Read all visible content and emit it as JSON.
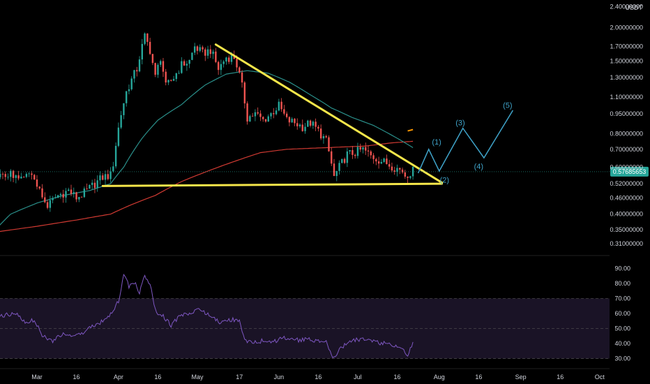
{
  "chart_data": {
    "type": "candlestick",
    "title": "",
    "price_axis": {
      "currency": "USDT",
      "scale": "log",
      "ticks": [
        "2.40000000",
        "2.00000000",
        "1.70000000",
        "1.50000000",
        "1.30000000",
        "1.10000000",
        "0.95000000",
        "0.80000000",
        "0.70000000",
        "0.60000000",
        "0.52000000",
        "0.46000000",
        "0.40000000",
        "0.35000000",
        "0.31000000"
      ],
      "tick_values": [
        2.4,
        2.0,
        1.7,
        1.5,
        1.3,
        1.1,
        0.95,
        0.8,
        0.7,
        0.6,
        0.52,
        0.46,
        0.4,
        0.35,
        0.31
      ],
      "last_price": "0.57685653",
      "range": [
        0.29,
        2.45
      ]
    },
    "time_axis": {
      "labels": [
        "Mar",
        "16",
        "Apr",
        "16",
        "May",
        "17",
        "Jun",
        "16",
        "Jul",
        "16",
        "Aug",
        "16",
        "Sep",
        "16",
        "Oct"
      ],
      "day_index": [
        0,
        15,
        31,
        46,
        61,
        77,
        92,
        107,
        122,
        137,
        153,
        168,
        184,
        199,
        214
      ]
    },
    "price_anchors": [
      {
        "day": -15,
        "close": 0.55
      },
      {
        "day": -10,
        "close": 0.57
      },
      {
        "day": -7,
        "close": 0.53
      },
      {
        "day": -3,
        "close": 0.56
      },
      {
        "day": -1,
        "close": 0.55
      },
      {
        "day": 2,
        "close": 0.46
      },
      {
        "day": 4,
        "close": 0.43
      },
      {
        "day": 8,
        "close": 0.47
      },
      {
        "day": 12,
        "close": 0.49
      },
      {
        "day": 15,
        "close": 0.46
      },
      {
        "day": 18,
        "close": 0.48
      },
      {
        "day": 22,
        "close": 0.52
      },
      {
        "day": 25,
        "close": 0.55
      },
      {
        "day": 28,
        "close": 0.56
      },
      {
        "day": 29,
        "close": 0.62
      },
      {
        "day": 32,
        "close": 0.95
      },
      {
        "day": 34,
        "close": 1.15
      },
      {
        "day": 38,
        "close": 1.4
      },
      {
        "day": 41,
        "close": 1.85
      },
      {
        "day": 43,
        "close": 1.65
      },
      {
        "day": 45,
        "close": 1.3
      },
      {
        "day": 47,
        "close": 1.55
      },
      {
        "day": 49,
        "close": 1.2
      },
      {
        "day": 52,
        "close": 1.3
      },
      {
        "day": 55,
        "close": 1.45
      },
      {
        "day": 58,
        "close": 1.5
      },
      {
        "day": 60,
        "close": 1.7
      },
      {
        "day": 63,
        "close": 1.6
      },
      {
        "day": 66,
        "close": 1.65
      },
      {
        "day": 69,
        "close": 1.4
      },
      {
        "day": 72,
        "close": 1.55
      },
      {
        "day": 75,
        "close": 1.55
      },
      {
        "day": 76,
        "close": 1.45
      },
      {
        "day": 78,
        "close": 1.2
      },
      {
        "day": 80,
        "close": 0.92
      },
      {
        "day": 83,
        "close": 0.95
      },
      {
        "day": 86,
        "close": 0.9
      },
      {
        "day": 89,
        "close": 0.95
      },
      {
        "day": 92,
        "close": 1.02
      },
      {
        "day": 95,
        "close": 0.9
      },
      {
        "day": 98,
        "close": 0.88
      },
      {
        "day": 101,
        "close": 0.85
      },
      {
        "day": 104,
        "close": 0.88
      },
      {
        "day": 107,
        "close": 0.82
      },
      {
        "day": 110,
        "close": 0.75
      },
      {
        "day": 113,
        "close": 0.55
      },
      {
        "day": 115,
        "close": 0.6
      },
      {
        "day": 118,
        "close": 0.67
      },
      {
        "day": 121,
        "close": 0.68
      },
      {
        "day": 124,
        "close": 0.7
      },
      {
        "day": 127,
        "close": 0.66
      },
      {
        "day": 130,
        "close": 0.64
      },
      {
        "day": 133,
        "close": 0.62
      },
      {
        "day": 136,
        "close": 0.6
      },
      {
        "day": 139,
        "close": 0.58
      },
      {
        "day": 140,
        "close": 0.56
      },
      {
        "day": 143,
        "close": 0.58
      }
    ],
    "ma_fast_anchors": [
      {
        "day": -18,
        "value": 0.33
      },
      {
        "day": -10,
        "value": 0.4
      },
      {
        "day": 0,
        "value": 0.44
      },
      {
        "day": 10,
        "value": 0.47
      },
      {
        "day": 20,
        "value": 0.49
      },
      {
        "day": 28,
        "value": 0.52
      },
      {
        "day": 33,
        "value": 0.6
      },
      {
        "day": 40,
        "value": 0.77
      },
      {
        "day": 46,
        "value": 0.9
      },
      {
        "day": 55,
        "value": 1.03
      },
      {
        "day": 64,
        "value": 1.22
      },
      {
        "day": 72,
        "value": 1.34
      },
      {
        "day": 80,
        "value": 1.38
      },
      {
        "day": 88,
        "value": 1.35
      },
      {
        "day": 96,
        "value": 1.25
      },
      {
        "day": 104,
        "value": 1.12
      },
      {
        "day": 112,
        "value": 1.0
      },
      {
        "day": 120,
        "value": 0.92
      },
      {
        "day": 128,
        "value": 0.86
      },
      {
        "day": 136,
        "value": 0.78
      },
      {
        "day": 143,
        "value": 0.71
      }
    ],
    "ma_slow_anchors": [
      {
        "day": -18,
        "value": 0.34
      },
      {
        "day": 0,
        "value": 0.36
      },
      {
        "day": 15,
        "value": 0.38
      },
      {
        "day": 28,
        "value": 0.4
      },
      {
        "day": 35,
        "value": 0.43
      },
      {
        "day": 45,
        "value": 0.47
      },
      {
        "day": 55,
        "value": 0.53
      },
      {
        "day": 65,
        "value": 0.58
      },
      {
        "day": 75,
        "value": 0.63
      },
      {
        "day": 85,
        "value": 0.68
      },
      {
        "day": 95,
        "value": 0.7
      },
      {
        "day": 110,
        "value": 0.71
      },
      {
        "day": 125,
        "value": 0.72
      },
      {
        "day": 135,
        "value": 0.74
      },
      {
        "day": 143,
        "value": 0.75
      }
    ],
    "trendlines": [
      {
        "name": "descending-resistance",
        "from": {
          "day": 68,
          "price": 1.73
        },
        "to": {
          "day": 154,
          "price": 0.525
        }
      },
      {
        "name": "horizontal-support",
        "from": {
          "day": 25,
          "price": 0.51
        },
        "to": {
          "day": 154,
          "price": 0.52
        }
      }
    ],
    "forecast_path": [
      {
        "day": 145,
        "price": 0.57
      },
      {
        "day": 149,
        "price": 0.7
      },
      {
        "day": 153,
        "price": 0.58
      },
      {
        "day": 162,
        "price": 0.84
      },
      {
        "day": 170,
        "price": 0.65
      },
      {
        "day": 181,
        "price": 0.98
      }
    ],
    "wave_labels": [
      {
        "text": "(1)",
        "day": 152,
        "price": 0.73
      },
      {
        "text": "(2)",
        "day": 155,
        "price": 0.525
      },
      {
        "text": "(3)",
        "day": 161,
        "price": 0.86
      },
      {
        "text": "(4)",
        "day": 168,
        "price": 0.59
      },
      {
        "text": "(5)",
        "day": 179,
        "price": 1.0
      }
    ],
    "small_marker": {
      "from": {
        "day": 141,
        "price": 0.82
      },
      "to": {
        "day": 143,
        "price": 0.83
      }
    },
    "rsi": {
      "ticks": [
        "90.00",
        "80.00",
        "70.00",
        "60.00",
        "50.00",
        "40.00",
        "30.00"
      ],
      "tick_values": [
        90,
        80,
        70,
        60,
        50,
        40,
        30
      ],
      "overbought": 70,
      "midline": 50,
      "oversold": 30,
      "range": [
        27,
        93
      ],
      "anchors": [
        {
          "day": -15,
          "value": 58
        },
        {
          "day": -8,
          "value": 60
        },
        {
          "day": -4,
          "value": 54
        },
        {
          "day": -1,
          "value": 56
        },
        {
          "day": 2,
          "value": 45
        },
        {
          "day": 6,
          "value": 42
        },
        {
          "day": 10,
          "value": 47
        },
        {
          "day": 14,
          "value": 44
        },
        {
          "day": 18,
          "value": 48
        },
        {
          "day": 22,
          "value": 52
        },
        {
          "day": 26,
          "value": 56
        },
        {
          "day": 28,
          "value": 60
        },
        {
          "day": 31,
          "value": 68
        },
        {
          "day": 33,
          "value": 86
        },
        {
          "day": 35,
          "value": 78
        },
        {
          "day": 37,
          "value": 81
        },
        {
          "day": 39,
          "value": 74
        },
        {
          "day": 41,
          "value": 85
        },
        {
          "day": 43,
          "value": 80
        },
        {
          "day": 45,
          "value": 62
        },
        {
          "day": 48,
          "value": 58
        },
        {
          "day": 51,
          "value": 52
        },
        {
          "day": 54,
          "value": 58
        },
        {
          "day": 58,
          "value": 60
        },
        {
          "day": 62,
          "value": 63
        },
        {
          "day": 66,
          "value": 58
        },
        {
          "day": 70,
          "value": 54
        },
        {
          "day": 74,
          "value": 56
        },
        {
          "day": 77,
          "value": 55
        },
        {
          "day": 79,
          "value": 42
        },
        {
          "day": 82,
          "value": 40
        },
        {
          "day": 86,
          "value": 42
        },
        {
          "day": 90,
          "value": 41
        },
        {
          "day": 94,
          "value": 44
        },
        {
          "day": 98,
          "value": 42
        },
        {
          "day": 102,
          "value": 43
        },
        {
          "day": 106,
          "value": 42
        },
        {
          "day": 110,
          "value": 41
        },
        {
          "day": 113,
          "value": 30
        },
        {
          "day": 116,
          "value": 38
        },
        {
          "day": 120,
          "value": 42
        },
        {
          "day": 124,
          "value": 43
        },
        {
          "day": 128,
          "value": 41
        },
        {
          "day": 132,
          "value": 40
        },
        {
          "day": 136,
          "value": 39
        },
        {
          "day": 139,
          "value": 36
        },
        {
          "day": 141,
          "value": 32
        },
        {
          "day": 143,
          "value": 40
        }
      ]
    }
  },
  "colors": {
    "background": "#000000",
    "up_candle": "#26a69a",
    "down_candle": "#ef5350",
    "ma_fast": "#2a8f8a",
    "ma_slow": "#d03a32",
    "trendline": "#f5e64a",
    "forecast": "#3fa3c9",
    "wave_label": "#3fa3c9",
    "rsi_line": "#7e57c2",
    "rsi_band": "#1a1326",
    "last_price_tag": "#26a69a",
    "marker": "#ff9800",
    "axis_text": "#d1d4dc",
    "dashed_line": "#555555"
  }
}
